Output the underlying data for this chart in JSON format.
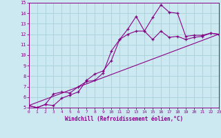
{
  "xlabel": "Windchill (Refroidissement éolien,°C)",
  "xlim": [
    0,
    23
  ],
  "ylim": [
    5,
    15
  ],
  "xticks": [
    0,
    1,
    2,
    3,
    4,
    5,
    6,
    7,
    8,
    9,
    10,
    11,
    12,
    13,
    14,
    15,
    16,
    17,
    18,
    19,
    20,
    21,
    22,
    23
  ],
  "yticks": [
    5,
    6,
    7,
    8,
    9,
    10,
    11,
    12,
    13,
    14,
    15
  ],
  "bg_color": "#cce8f0",
  "line_color": "#880088",
  "grid_color": "#aad4dc",
  "line1_x": [
    0,
    1,
    2,
    3,
    4,
    5,
    6,
    7,
    8,
    9,
    10,
    11,
    12,
    13,
    14,
    15,
    16,
    17,
    18,
    19,
    20,
    21,
    22,
    23
  ],
  "line1_y": [
    5.2,
    5.0,
    5.3,
    6.3,
    6.5,
    6.4,
    7.0,
    7.5,
    7.6,
    8.3,
    10.4,
    11.5,
    12.5,
    13.7,
    12.3,
    13.6,
    14.8,
    14.1,
    14.0,
    11.8,
    11.9,
    11.9,
    12.1,
    12.0
  ],
  "line2_x": [
    0,
    1,
    2,
    3,
    4,
    5,
    6,
    7,
    8,
    9,
    10,
    11,
    12,
    13,
    14,
    15,
    16,
    17,
    18,
    19,
    20,
    21,
    22,
    23
  ],
  "line2_y": [
    5.2,
    5.0,
    5.3,
    5.2,
    5.9,
    6.2,
    6.5,
    7.6,
    8.2,
    8.5,
    9.5,
    11.5,
    12.0,
    12.3,
    12.3,
    11.5,
    12.3,
    11.7,
    11.8,
    11.5,
    11.7,
    11.8,
    12.1,
    12.0
  ],
  "line3_x": [
    0,
    23
  ],
  "line3_y": [
    5.2,
    12.0
  ]
}
